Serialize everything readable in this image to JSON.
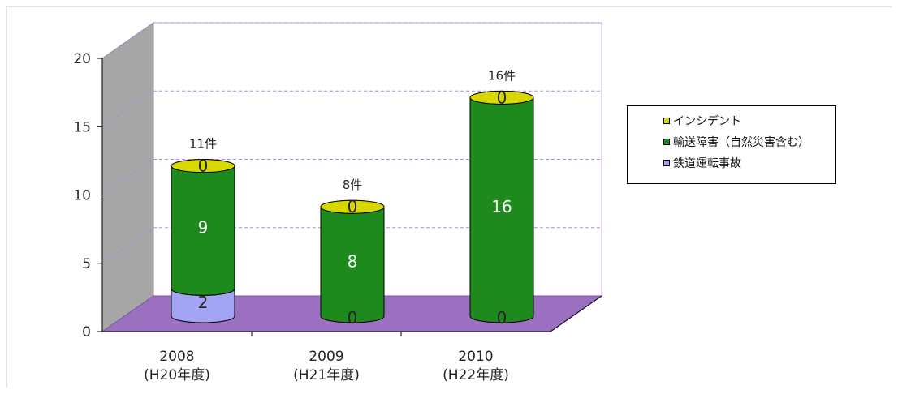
{
  "chart_data": {
    "type": "bar",
    "stacked": true,
    "shape": "cylinder",
    "categories": [
      "2008",
      "2009",
      "2010"
    ],
    "category_sublabels": [
      "(H20年度)",
      "(H21年度)",
      "(H22年度)"
    ],
    "series": [
      {
        "name": "鉄道運転事故",
        "values": [
          2,
          0,
          0
        ],
        "color": "#a4a4f4"
      },
      {
        "name": "輸送障害（自然災害含む）",
        "values": [
          9,
          8,
          16
        ],
        "color": "#1e8a1e"
      },
      {
        "name": "インシデント",
        "values": [
          0,
          0,
          0
        ],
        "color": "#d8d800"
      }
    ],
    "totals": [
      "11件",
      "8件",
      "16件"
    ],
    "ylim": [
      0,
      20
    ],
    "yticks": [
      "0",
      "5",
      "10",
      "15",
      "20"
    ],
    "grid": true,
    "legend_position": "right",
    "colors": {
      "wall": "#ffffff",
      "wall_border": "#c9a0e0",
      "gridline": "#b08ae0",
      "floor": "#9b70c0",
      "side_wall": "#a6a6a6"
    }
  }
}
